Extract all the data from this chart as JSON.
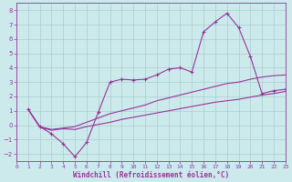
{
  "background_color": "#cceaec",
  "grid_color": "#aacccc",
  "line_color": "#993399",
  "xlabel": "Windchill (Refroidissement éolien,°C)",
  "xlim": [
    0,
    23
  ],
  "ylim": [
    -2.5,
    8.5
  ],
  "xticks": [
    0,
    1,
    2,
    3,
    4,
    5,
    6,
    7,
    8,
    9,
    10,
    11,
    12,
    13,
    14,
    15,
    16,
    17,
    18,
    19,
    20,
    21,
    22,
    23
  ],
  "yticks": [
    -2,
    -1,
    0,
    1,
    2,
    3,
    4,
    5,
    6,
    7,
    8
  ],
  "line1_x": [
    1,
    2,
    3,
    4,
    5,
    6,
    7,
    8,
    9,
    10,
    11,
    12,
    13,
    14,
    15,
    16,
    17,
    18,
    19,
    20,
    21,
    22,
    23
  ],
  "line1_y": [
    1.1,
    -0.1,
    -0.6,
    -1.3,
    -2.2,
    -1.2,
    0.9,
    3.0,
    3.2,
    3.15,
    3.2,
    3.5,
    3.9,
    4.0,
    3.7,
    6.5,
    7.2,
    7.8,
    6.8,
    4.8,
    2.2,
    2.4,
    2.5
  ],
  "line2_x": [
    1,
    2,
    3,
    4,
    5,
    6,
    7,
    8,
    9,
    10,
    11,
    12,
    13,
    14,
    15,
    16,
    17,
    18,
    19,
    20,
    21,
    22,
    23
  ],
  "line2_y": [
    1.1,
    -0.1,
    -0.3,
    -0.2,
    -0.1,
    0.2,
    0.5,
    0.8,
    1.0,
    1.2,
    1.4,
    1.7,
    1.9,
    2.1,
    2.3,
    2.5,
    2.7,
    2.9,
    3.0,
    3.2,
    3.35,
    3.45,
    3.5
  ],
  "line3_x": [
    1,
    2,
    3,
    4,
    5,
    6,
    7,
    8,
    9,
    10,
    11,
    12,
    13,
    14,
    15,
    16,
    17,
    18,
    19,
    20,
    21,
    22,
    23
  ],
  "line3_y": [
    1.1,
    -0.15,
    -0.35,
    -0.25,
    -0.3,
    -0.1,
    0.05,
    0.2,
    0.4,
    0.55,
    0.7,
    0.85,
    1.0,
    1.15,
    1.3,
    1.45,
    1.6,
    1.7,
    1.8,
    1.95,
    2.1,
    2.2,
    2.35
  ]
}
